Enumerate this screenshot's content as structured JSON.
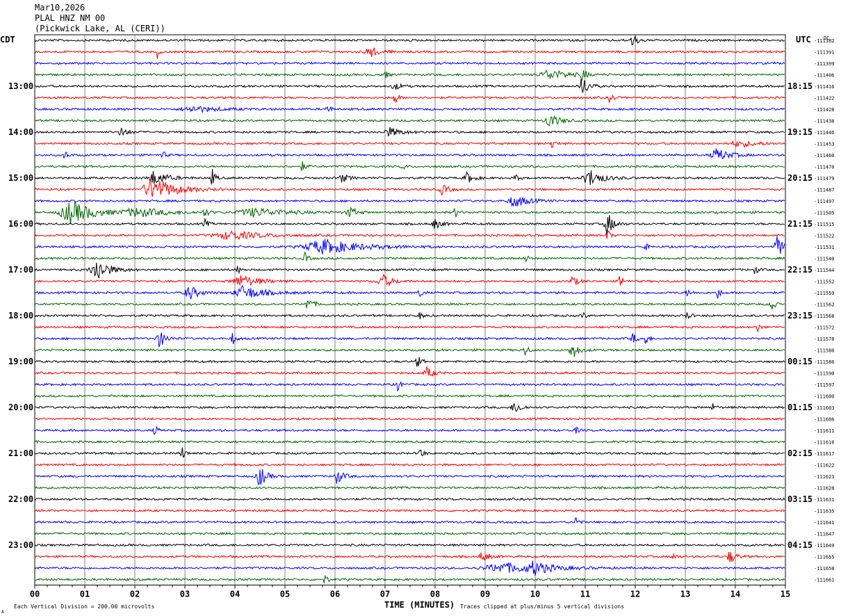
{
  "header": {
    "date": "Mar10,2026",
    "station": "PLAL HNZ NM 00",
    "location": "(Pickwick Lake, AL (CERI))"
  },
  "labels": {
    "left_tz": "CDT",
    "right_tz": "UTC",
    "dc": "DC",
    "xlabel": "TIME (MINUTES)",
    "scale_note": "Each Vertical Division =  200.00 microvolts",
    "clip_note": "Traces clipped at plus/minus 5 vertical divisions",
    "corner_mark": "A"
  },
  "colors": {
    "trace_cycle": [
      "#000000",
      "#ff0000",
      "#0000ff",
      "#006400"
    ],
    "grid": "#808080"
  },
  "chart_data": {
    "type": "line",
    "xlim": [
      0,
      15
    ],
    "x_ticks": [
      "00",
      "01",
      "02",
      "03",
      "04",
      "05",
      "06",
      "07",
      "08",
      "09",
      "10",
      "11",
      "12",
      "13",
      "14",
      "15"
    ],
    "left_time_labels": [
      {
        "row": 4,
        "text": "13:00"
      },
      {
        "row": 8,
        "text": "14:00"
      },
      {
        "row": 12,
        "text": "15:00"
      },
      {
        "row": 16,
        "text": "16:00"
      },
      {
        "row": 20,
        "text": "17:00"
      },
      {
        "row": 24,
        "text": "18:00"
      },
      {
        "row": 28,
        "text": "19:00"
      },
      {
        "row": 32,
        "text": "20:00"
      },
      {
        "row": 36,
        "text": "21:00"
      },
      {
        "row": 40,
        "text": "22:00"
      },
      {
        "row": 44,
        "text": "23:00"
      }
    ],
    "right_time_labels": [
      {
        "row": 4,
        "text": "18:15"
      },
      {
        "row": 8,
        "text": "19:15"
      },
      {
        "row": 12,
        "text": "20:15"
      },
      {
        "row": 16,
        "text": "21:15"
      },
      {
        "row": 20,
        "text": "22:15"
      },
      {
        "row": 24,
        "text": "23:15"
      },
      {
        "row": 28,
        "text": "00:15"
      },
      {
        "row": 32,
        "text": "01:15"
      },
      {
        "row": 36,
        "text": "02:15"
      },
      {
        "row": 40,
        "text": "03:15"
      },
      {
        "row": 44,
        "text": "04:15"
      }
    ],
    "dc_offsets": [
      "-111382",
      "-111391",
      "-111399",
      "-111406",
      "-111416",
      "-111422",
      "-111428",
      "-111438",
      "-111446",
      "-111453",
      "-111460",
      "-111470",
      "-111479",
      "-111487",
      "-111497",
      "-111505",
      "-111515",
      "-111522",
      "-111531",
      "-111540",
      "-111544",
      "-111552",
      "-111559",
      "-111562",
      "-111568",
      "-111572",
      "-111578",
      "-111580",
      "-111586",
      "-111590",
      "-111597",
      "-111600",
      "-111603",
      "-111606",
      "-111611",
      "-111616",
      "-111617",
      "-111622",
      "-111623",
      "-111628",
      "-111631",
      "-111635",
      "-111641",
      "-111647",
      "-111649",
      "-111655",
      "-111658",
      "-111661"
    ],
    "events": [
      {
        "row": 0,
        "t": 11.95,
        "a": 10,
        "w": 0.08
      },
      {
        "row": 1,
        "t": 2.45,
        "a": 10,
        "w": 0.03
      },
      {
        "row": 1,
        "t": 6.7,
        "a": 8,
        "w": 0.15
      },
      {
        "row": 3,
        "t": 7.0,
        "a": 6,
        "w": 0.05
      },
      {
        "row": 3,
        "t": 10.3,
        "a": 7,
        "w": 0.3
      },
      {
        "row": 3,
        "t": 10.95,
        "a": 10,
        "w": 0.05
      },
      {
        "row": 4,
        "t": 7.2,
        "a": 5,
        "w": 0.1
      },
      {
        "row": 4,
        "t": 10.95,
        "a": 14,
        "w": 0.1
      },
      {
        "row": 5,
        "t": 7.2,
        "a": 9,
        "w": 0.05
      },
      {
        "row": 5,
        "t": 11.5,
        "a": 8,
        "w": 0.05
      },
      {
        "row": 6,
        "t": 3.2,
        "a": 4,
        "w": 0.4
      },
      {
        "row": 6,
        "t": 5.85,
        "a": 6,
        "w": 0.05
      },
      {
        "row": 7,
        "t": 10.3,
        "a": 10,
        "w": 0.15
      },
      {
        "row": 8,
        "t": 1.75,
        "a": 7,
        "w": 0.1
      },
      {
        "row": 8,
        "t": 7.1,
        "a": 6,
        "w": 0.2
      },
      {
        "row": 9,
        "t": 10.35,
        "a": 9,
        "w": 0.05
      },
      {
        "row": 9,
        "t": 14.1,
        "a": 4,
        "w": 0.3
      },
      {
        "row": 10,
        "t": 0.6,
        "a": 6,
        "w": 0.05
      },
      {
        "row": 10,
        "t": 2.55,
        "a": 6,
        "w": 0.05
      },
      {
        "row": 10,
        "t": 13.65,
        "a": 9,
        "w": 0.2
      },
      {
        "row": 11,
        "t": 5.35,
        "a": 7,
        "w": 0.05
      },
      {
        "row": 11,
        "t": 7.35,
        "a": 5,
        "w": 0.05
      },
      {
        "row": 12,
        "t": 2.4,
        "a": 10,
        "w": 0.2
      },
      {
        "row": 12,
        "t": 3.55,
        "a": 12,
        "w": 0.05
      },
      {
        "row": 12,
        "t": 6.15,
        "a": 6,
        "w": 0.1
      },
      {
        "row": 12,
        "t": 8.65,
        "a": 8,
        "w": 0.1
      },
      {
        "row": 12,
        "t": 9.6,
        "a": 6,
        "w": 0.05
      },
      {
        "row": 12,
        "t": 11.1,
        "a": 12,
        "w": 0.2
      },
      {
        "row": 13,
        "t": 2.4,
        "a": 16,
        "w": 0.35
      },
      {
        "row": 13,
        "t": 8.15,
        "a": 7,
        "w": 0.1
      },
      {
        "row": 14,
        "t": 9.6,
        "a": 9,
        "w": 0.2
      },
      {
        "row": 15,
        "t": 0.75,
        "a": 16,
        "w": 0.35
      },
      {
        "row": 15,
        "t": 2.1,
        "a": 6,
        "w": 0.5
      },
      {
        "row": 15,
        "t": 3.4,
        "a": 7,
        "w": 0.05
      },
      {
        "row": 15,
        "t": 4.4,
        "a": 6,
        "w": 0.5
      },
      {
        "row": 15,
        "t": 6.3,
        "a": 8,
        "w": 0.1
      },
      {
        "row": 15,
        "t": 8.4,
        "a": 7,
        "w": 0.05
      },
      {
        "row": 16,
        "t": 3.4,
        "a": 7,
        "w": 0.05
      },
      {
        "row": 16,
        "t": 8.0,
        "a": 7,
        "w": 0.1
      },
      {
        "row": 16,
        "t": 11.45,
        "a": 16,
        "w": 0.1
      },
      {
        "row": 17,
        "t": 3.95,
        "a": 6,
        "w": 0.5
      },
      {
        "row": 17,
        "t": 11.45,
        "a": 8,
        "w": 0.05
      },
      {
        "row": 18,
        "t": 5.8,
        "a": 10,
        "w": 0.6
      },
      {
        "row": 18,
        "t": 12.2,
        "a": 5,
        "w": 0.05
      },
      {
        "row": 18,
        "t": 14.85,
        "a": 16,
        "w": 0.1
      },
      {
        "row": 19,
        "t": 5.4,
        "a": 8,
        "w": 0.05
      },
      {
        "row": 19,
        "t": 9.8,
        "a": 6,
        "w": 0.05
      },
      {
        "row": 20,
        "t": 1.25,
        "a": 16,
        "w": 0.2
      },
      {
        "row": 20,
        "t": 4.05,
        "a": 6,
        "w": 0.05
      },
      {
        "row": 20,
        "t": 14.4,
        "a": 6,
        "w": 0.05
      },
      {
        "row": 21,
        "t": 4.15,
        "a": 8,
        "w": 0.3
      },
      {
        "row": 21,
        "t": 6.95,
        "a": 10,
        "w": 0.15
      },
      {
        "row": 21,
        "t": 10.75,
        "a": 6,
        "w": 0.1
      },
      {
        "row": 21,
        "t": 11.7,
        "a": 9,
        "w": 0.05
      },
      {
        "row": 22,
        "t": 3.1,
        "a": 10,
        "w": 0.15
      },
      {
        "row": 22,
        "t": 4.2,
        "a": 10,
        "w": 0.3
      },
      {
        "row": 22,
        "t": 7.7,
        "a": 7,
        "w": 0.05
      },
      {
        "row": 22,
        "t": 13.05,
        "a": 6,
        "w": 0.05
      },
      {
        "row": 22,
        "t": 13.65,
        "a": 8,
        "w": 0.05
      },
      {
        "row": 23,
        "t": 5.45,
        "a": 8,
        "w": 0.1
      },
      {
        "row": 23,
        "t": 14.7,
        "a": 14,
        "w": 0.05
      },
      {
        "row": 24,
        "t": 7.7,
        "a": 5,
        "w": 0.05
      },
      {
        "row": 24,
        "t": 10.95,
        "a": 5,
        "w": 0.05
      },
      {
        "row": 24,
        "t": 13.05,
        "a": 6,
        "w": 0.05
      },
      {
        "row": 25,
        "t": 14.45,
        "a": 6,
        "w": 0.05
      },
      {
        "row": 26,
        "t": 2.5,
        "a": 12,
        "w": 0.1
      },
      {
        "row": 26,
        "t": 3.95,
        "a": 9,
        "w": 0.05
      },
      {
        "row": 26,
        "t": 11.95,
        "a": 9,
        "w": 0.05
      },
      {
        "row": 26,
        "t": 12.2,
        "a": 10,
        "w": 0.05
      },
      {
        "row": 27,
        "t": 9.8,
        "a": 9,
        "w": 0.05
      },
      {
        "row": 27,
        "t": 10.75,
        "a": 12,
        "w": 0.1
      },
      {
        "row": 28,
        "t": 7.65,
        "a": 10,
        "w": 0.05
      },
      {
        "row": 29,
        "t": 7.85,
        "a": 8,
        "w": 0.1
      },
      {
        "row": 30,
        "t": 7.25,
        "a": 10,
        "w": 0.05
      },
      {
        "row": 32,
        "t": 9.6,
        "a": 9,
        "w": 0.1
      },
      {
        "row": 32,
        "t": 13.55,
        "a": 5,
        "w": 0.05
      },
      {
        "row": 34,
        "t": 2.4,
        "a": 7,
        "w": 0.05
      },
      {
        "row": 34,
        "t": 10.8,
        "a": 6,
        "w": 0.05
      },
      {
        "row": 36,
        "t": 2.95,
        "a": 9,
        "w": 0.05
      },
      {
        "row": 36,
        "t": 7.7,
        "a": 9,
        "w": 0.05
      },
      {
        "row": 38,
        "t": 4.5,
        "a": 16,
        "w": 0.1
      },
      {
        "row": 38,
        "t": 6.05,
        "a": 10,
        "w": 0.1
      },
      {
        "row": 42,
        "t": 10.8,
        "a": 10,
        "w": 0.05
      },
      {
        "row": 45,
        "t": 8.95,
        "a": 7,
        "w": 0.1
      },
      {
        "row": 45,
        "t": 12.75,
        "a": 6,
        "w": 0.05
      },
      {
        "row": 45,
        "t": 13.9,
        "a": 9,
        "w": 0.1
      },
      {
        "row": 46,
        "t": 9.4,
        "a": 7,
        "w": 0.6
      },
      {
        "row": 46,
        "t": 10.0,
        "a": 8,
        "w": 0.2
      },
      {
        "row": 47,
        "t": 5.8,
        "a": 7,
        "w": 0.05
      }
    ]
  }
}
